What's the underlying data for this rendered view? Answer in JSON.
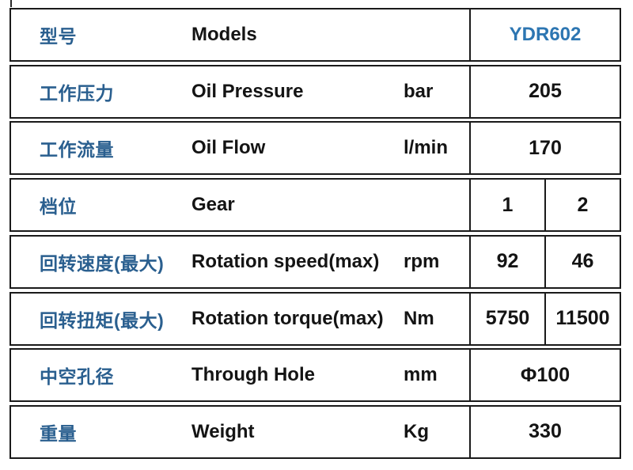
{
  "colors": {
    "label_zh": "#2a5f8f",
    "model_value": "#2d76b2",
    "text": "#141414",
    "border": "#1a1a1a"
  },
  "table": {
    "rows": [
      {
        "zh": "型号",
        "en": "Models",
        "unit": "",
        "values": [
          "YDR602"
        ]
      },
      {
        "zh": "工作压力",
        "en": "Oil Pressure",
        "unit": "bar",
        "values": [
          "205"
        ]
      },
      {
        "zh": "工作流量",
        "en": "Oil Flow",
        "unit": "l/min",
        "values": [
          "170"
        ]
      },
      {
        "zh": "档位",
        "en": "Gear",
        "unit": "",
        "values": [
          "1",
          "2"
        ]
      },
      {
        "zh": "回转速度(最大)",
        "en": "Rotation speed(max)",
        "unit": "rpm",
        "values": [
          "92",
          "46"
        ]
      },
      {
        "zh": "回转扭矩(最大)",
        "en": "Rotation torque(max)",
        "unit": "Nm",
        "values": [
          "5750",
          "11500"
        ]
      },
      {
        "zh": "中空孔径",
        "en": "Through Hole",
        "unit": "mm",
        "values": [
          "Φ100"
        ]
      },
      {
        "zh": "重量",
        "en": "Weight",
        "unit": "Kg",
        "values": [
          "330"
        ]
      }
    ]
  }
}
